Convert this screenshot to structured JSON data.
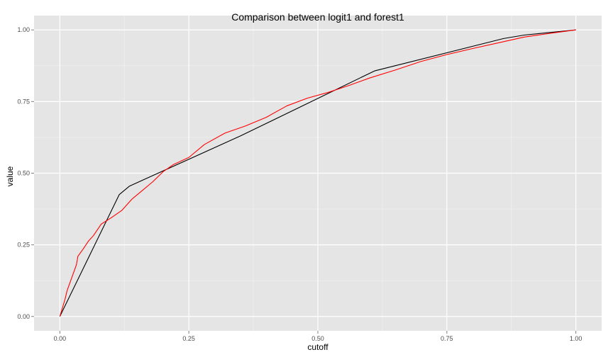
{
  "chart_data": {
    "type": "line",
    "title": "Comparison between logit1 and forest1",
    "xlabel": "cutoff",
    "ylabel": "value",
    "xlim": [
      -0.05,
      1.05
    ],
    "ylim": [
      -0.05,
      1.05
    ],
    "x_ticks": [
      0.0,
      0.25,
      0.5,
      0.75,
      1.0
    ],
    "y_ticks": [
      0.0,
      0.25,
      0.5,
      0.75,
      1.0
    ],
    "x_tick_labels": [
      "0.00",
      "0.25",
      "0.50",
      "0.75",
      "1.00"
    ],
    "y_tick_labels": [
      "0.00",
      "0.25",
      "0.50",
      "0.75",
      "1.00"
    ],
    "grid": true,
    "legend": false,
    "series": [
      {
        "color": "#000000",
        "points": [
          [
            0.0,
            0.0
          ],
          [
            0.115,
            0.425
          ],
          [
            0.135,
            0.455
          ],
          [
            0.35,
            0.63
          ],
          [
            0.61,
            0.857
          ],
          [
            0.86,
            0.97
          ],
          [
            0.9,
            0.982
          ],
          [
            1.0,
            1.0
          ]
        ]
      },
      {
        "color": "#ff0000",
        "points": [
          [
            0.0,
            0.0
          ],
          [
            0.005,
            0.03
          ],
          [
            0.01,
            0.06
          ],
          [
            0.014,
            0.09
          ],
          [
            0.02,
            0.12
          ],
          [
            0.027,
            0.155
          ],
          [
            0.032,
            0.18
          ],
          [
            0.035,
            0.21
          ],
          [
            0.045,
            0.235
          ],
          [
            0.055,
            0.262
          ],
          [
            0.065,
            0.282
          ],
          [
            0.08,
            0.322
          ],
          [
            0.1,
            0.345
          ],
          [
            0.12,
            0.37
          ],
          [
            0.14,
            0.41
          ],
          [
            0.16,
            0.44
          ],
          [
            0.18,
            0.47
          ],
          [
            0.2,
            0.505
          ],
          [
            0.22,
            0.53
          ],
          [
            0.25,
            0.555
          ],
          [
            0.28,
            0.6
          ],
          [
            0.32,
            0.64
          ],
          [
            0.36,
            0.665
          ],
          [
            0.4,
            0.695
          ],
          [
            0.44,
            0.735
          ],
          [
            0.48,
            0.762
          ],
          [
            0.52,
            0.782
          ],
          [
            0.56,
            0.806
          ],
          [
            0.6,
            0.832
          ],
          [
            0.65,
            0.86
          ],
          [
            0.7,
            0.89
          ],
          [
            0.75,
            0.914
          ],
          [
            0.8,
            0.935
          ],
          [
            0.85,
            0.955
          ],
          [
            0.9,
            0.975
          ],
          [
            0.95,
            0.988
          ],
          [
            1.0,
            1.0
          ]
        ]
      }
    ]
  }
}
